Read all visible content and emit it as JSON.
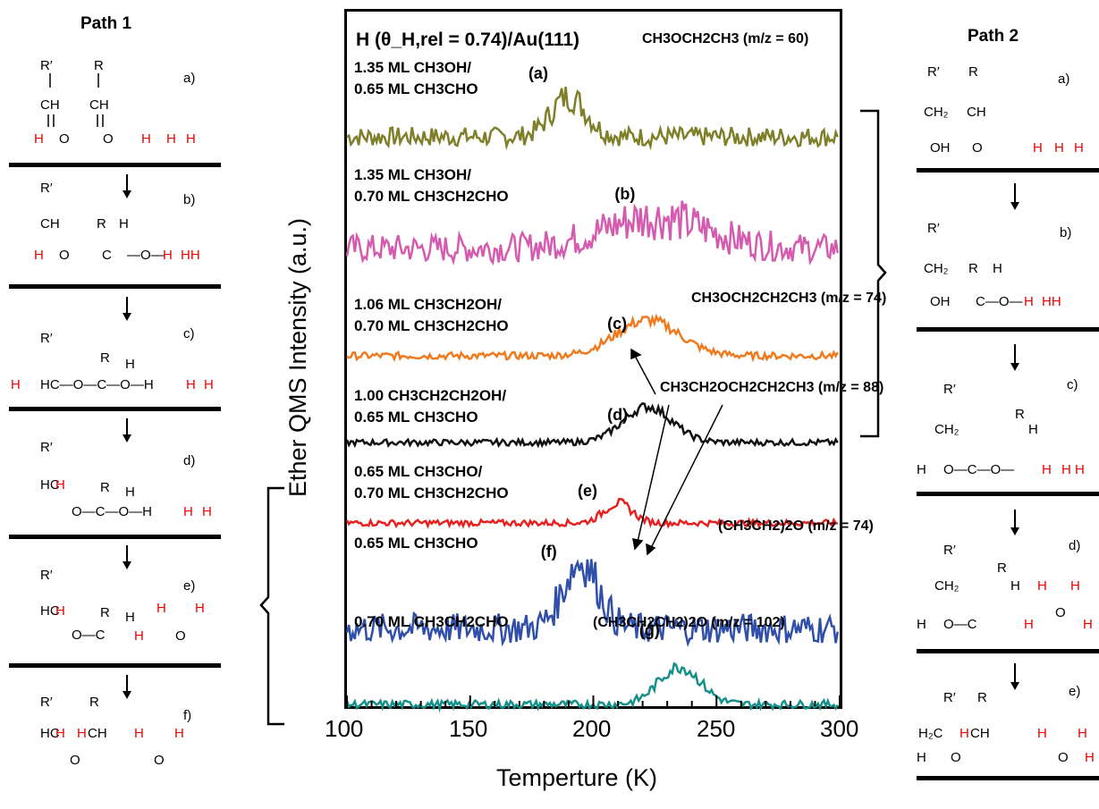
{
  "path1": {
    "title": "Path 1",
    "steps": [
      "a)",
      "b)",
      "c)",
      "d)",
      "e)",
      "f)"
    ]
  },
  "path2": {
    "title": "Path 2",
    "steps": [
      "a)",
      "b)",
      "c)",
      "d)",
      "e)"
    ]
  },
  "chart_data": {
    "type": "line",
    "title": "H (θ_H,rel = 0.74)/Au(111)",
    "xlabel": "Temperture (K)",
    "ylabel": "Ether QMS Intensity (a.u.)",
    "xlim": [
      100,
      300
    ],
    "xticks": [
      "100",
      "150",
      "200",
      "250",
      "300"
    ],
    "series": [
      {
        "label": "(a)",
        "name": "1.35 ML CH3OH/ 0.65 ML CH3CHO",
        "color": "#7f7f2a",
        "peak_T": 190,
        "ether": "CH3OCH2CH3 (m/z = 60)"
      },
      {
        "label": "(b)",
        "name": "1.35 ML CH3OH/ 0.70 ML CH3CH2CHO",
        "color": "#d45bb0",
        "peak_T": 225
      },
      {
        "label": "(c)",
        "name": "1.06 ML CH3CH2OH/ 0.70 ML CH3CH2CHO",
        "color": "#f07a1e",
        "peak_T": 222,
        "ether": "CH3OCH2CH2CH3 (m/z = 74)"
      },
      {
        "label": "(d)",
        "name": "1.00 CH3CH2CH2OH/ 0.65 ML CH3CHO",
        "color": "#111111",
        "peak_T": 222,
        "ether": "CH3CH2OCH2CH2CH3 (m/z = 88)"
      },
      {
        "label": "(e)",
        "name": "0.65 ML CH3CHO/ 0.70 ML CH3CH2CHO",
        "color": "#e82020",
        "peak_T": 210
      },
      {
        "label": "(f)",
        "name": "0.65 ML CH3CHO",
        "color": "#2f4fa8",
        "peak_T": 195,
        "ether": "(CH3CH2)2O (m/z = 74)"
      },
      {
        "label": "(g)",
        "name": "0.70 ML CH3CH2CHO",
        "color": "#15908a",
        "peak_T": 235,
        "ether": "(CH3CH2CH2)2O (m/z = 102)"
      }
    ]
  }
}
